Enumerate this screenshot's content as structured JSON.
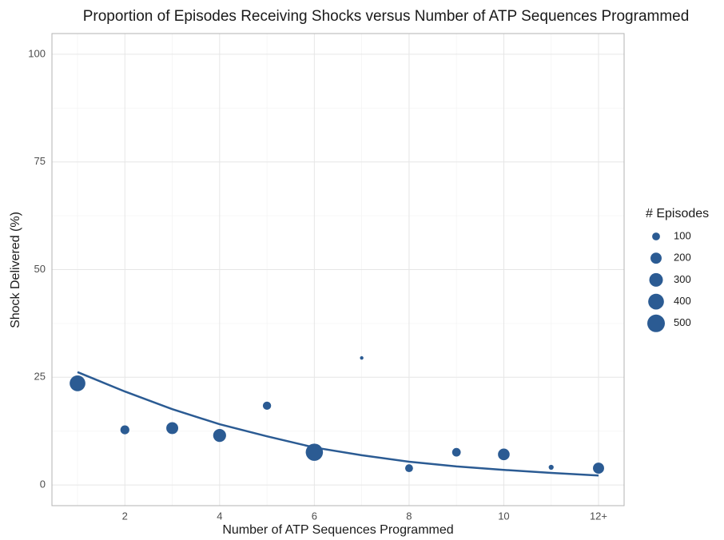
{
  "chart_data": {
    "type": "scatter",
    "title": "Proportion of Episodes Receiving Shocks versus Number of ATP Sequences Programmed",
    "x_label": "Number of ATP Sequences Programmed",
    "y_label": "Shock Delivered (%)",
    "x": [
      1,
      2,
      3,
      4,
      5,
      6,
      7,
      8,
      9,
      10,
      11,
      12
    ],
    "series": [
      {
        "color": "#2b5b93",
        "values": [
          23.6,
          12.8,
          13.2,
          11.5,
          18.4,
          7.6,
          29.5,
          3.9,
          7.6,
          7.1,
          4.1,
          3.9
        ],
        "sizes": [
          400,
          130,
          230,
          270,
          110,
          480,
          20,
          100,
          120,
          220,
          40,
          200
        ]
      }
    ],
    "fit": {
      "color": "#2b5b93",
      "values": [
        26.2,
        21.7,
        17.6,
        14.1,
        11.3,
        8.7,
        6.9,
        5.4,
        4.3,
        3.5,
        2.8,
        2.2
      ]
    },
    "size_legend": {
      "title": "# Episodes",
      "values": [
        100,
        200,
        300,
        400,
        500
      ]
    },
    "xlim": [
      0.46,
      12.54
    ],
    "ylim": [
      -4.8,
      104.8
    ],
    "xticks": [
      2,
      4,
      6,
      8,
      10,
      {
        "value": 12,
        "label": "12+"
      }
    ],
    "yticks": [
      0,
      25,
      50,
      75,
      100
    ],
    "x_minor_ticks": [
      1,
      3,
      5,
      7,
      9,
      11
    ],
    "y_minor_ticks": [
      12.5,
      37.5,
      62.5,
      87.5
    ],
    "grid": true
  }
}
